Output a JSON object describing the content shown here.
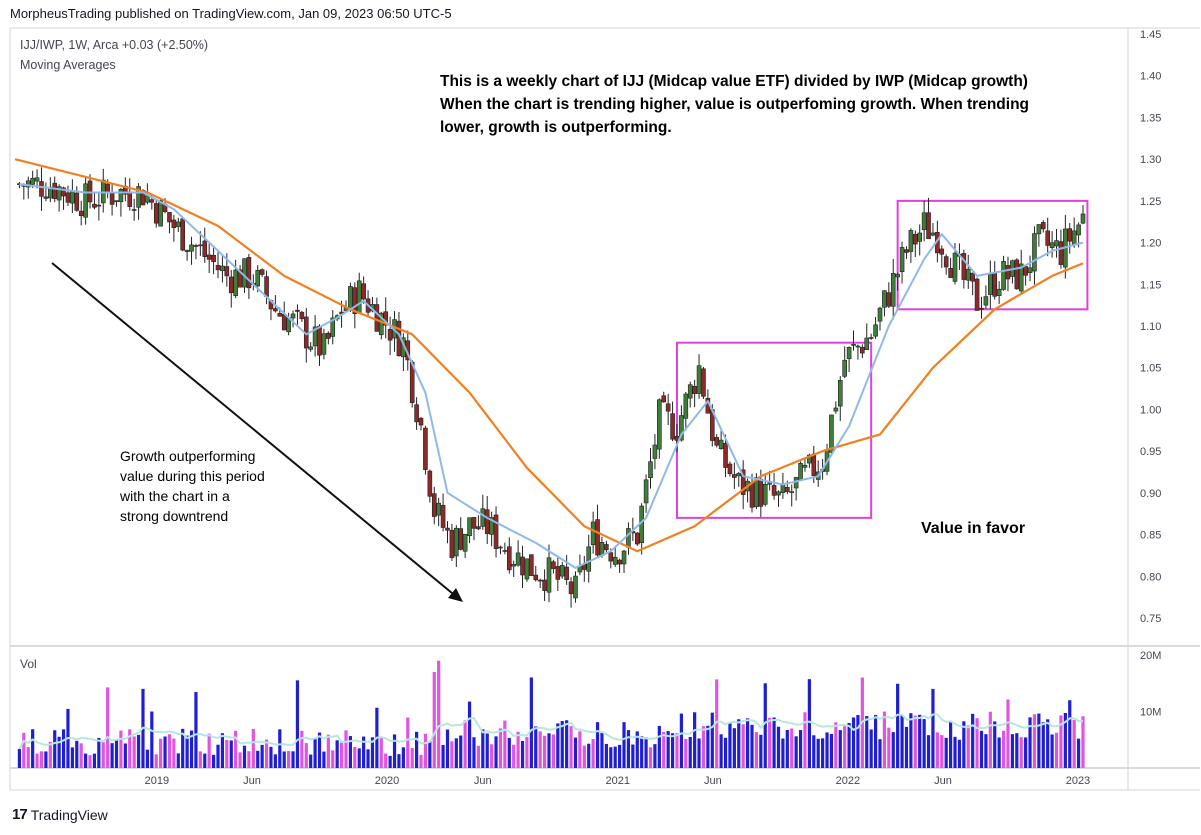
{
  "header": {
    "publisher": "MorpheusTrading published on TradingView.com, Jan 09, 2023 06:50 UTC-5",
    "ticker_line": "IJJ/IWP, 1W, Arca  +0.03 (+2.50%)",
    "indicator": "Moving Averages",
    "volume_label": "Vol"
  },
  "annotations": {
    "main_note": [
      "This is a weekly chart of IJJ (Midcap value ETF) divided by IWP (Midcap growth)",
      "When the chart is trending higher, value is outperfoming growth.  When trending",
      "lower, growth is outperforming."
    ],
    "left_note": [
      "Growth outperforming",
      "value during this period",
      "with the chart in a",
      "strong downtrend"
    ],
    "favor_note": "Value in favor"
  },
  "footer": {
    "logo": "17",
    "brand": "TradingView"
  },
  "colors": {
    "up": "#3f7d3a",
    "down": "#8c2a2a",
    "ma_fast": "#8fb9e8",
    "ma_slow": "#f08020",
    "box": "#e040e0",
    "vol_blue": "#1f1fd0",
    "vol_pink": "#e055e0",
    "vol_ma": "#b8e6e0"
  },
  "chart_data": {
    "type": "candlestick",
    "title": "IJJ/IWP, 1W, Arca",
    "ylim": [
      0.72,
      1.48
    ],
    "y_ticks": [
      "1.45",
      "1.40",
      "1.35",
      "1.30",
      "1.25",
      "1.20",
      "1.15",
      "1.10",
      "1.05",
      "1.00",
      "0.95",
      "0.90",
      "0.85",
      "0.80",
      "0.75"
    ],
    "x_ticks": [
      {
        "label": "2019",
        "date": "2019-01-01"
      },
      {
        "label": "Jun",
        "date": "2019-06-01"
      },
      {
        "label": "2020",
        "date": "2020-01-01"
      },
      {
        "label": "Jun",
        "date": "2020-06-01"
      },
      {
        "label": "2021",
        "date": "2021-01-01"
      },
      {
        "label": "Jun",
        "date": "2021-06-01"
      },
      {
        "label": "2022",
        "date": "2022-01-01"
      },
      {
        "label": "Jun",
        "date": "2022-06-01"
      },
      {
        "label": "2023",
        "date": "2023-01-01"
      }
    ],
    "x_range": [
      "2018-05-21",
      "2023-01-09"
    ],
    "close_path": [
      {
        "date": "2018-05-28",
        "value": 1.27
      },
      {
        "date": "2018-07-16",
        "value": 1.27
      },
      {
        "date": "2018-09-10",
        "value": 1.25
      },
      {
        "date": "2018-10-29",
        "value": 1.26
      },
      {
        "date": "2018-12-10",
        "value": 1.26
      },
      {
        "date": "2019-01-28",
        "value": 1.22
      },
      {
        "date": "2019-03-11",
        "value": 1.19
      },
      {
        "date": "2019-04-22",
        "value": 1.16
      },
      {
        "date": "2019-06-03",
        "value": 1.16
      },
      {
        "date": "2019-07-08",
        "value": 1.12
      },
      {
        "date": "2019-08-12",
        "value": 1.1
      },
      {
        "date": "2019-09-23",
        "value": 1.07
      },
      {
        "date": "2019-10-21",
        "value": 1.12
      },
      {
        "date": "2019-11-18",
        "value": 1.14
      },
      {
        "date": "2019-12-23",
        "value": 1.11
      },
      {
        "date": "2020-01-27",
        "value": 1.08
      },
      {
        "date": "2020-02-24",
        "value": 0.98
      },
      {
        "date": "2020-03-16",
        "value": 0.88
      },
      {
        "date": "2020-04-13",
        "value": 0.84
      },
      {
        "date": "2020-05-11",
        "value": 0.86
      },
      {
        "date": "2020-06-08",
        "value": 0.86
      },
      {
        "date": "2020-07-13",
        "value": 0.83
      },
      {
        "date": "2020-08-17",
        "value": 0.81
      },
      {
        "date": "2020-09-21",
        "value": 0.8
      },
      {
        "date": "2020-10-26",
        "value": 0.78
      },
      {
        "date": "2020-11-23",
        "value": 0.85
      },
      {
        "date": "2020-12-28",
        "value": 0.83
      },
      {
        "date": "2021-02-01",
        "value": 0.85
      },
      {
        "date": "2021-03-08",
        "value": 0.99
      },
      {
        "date": "2021-04-05",
        "value": 0.98
      },
      {
        "date": "2021-05-10",
        "value": 1.05
      },
      {
        "date": "2021-06-07",
        "value": 0.95
      },
      {
        "date": "2021-07-12",
        "value": 0.91
      },
      {
        "date": "2021-08-16",
        "value": 0.9
      },
      {
        "date": "2021-09-20",
        "value": 0.89
      },
      {
        "date": "2021-10-25",
        "value": 0.92
      },
      {
        "date": "2021-11-22",
        "value": 0.94
      },
      {
        "date": "2021-12-27",
        "value": 1.06
      },
      {
        "date": "2022-02-07",
        "value": 1.09
      },
      {
        "date": "2022-03-07",
        "value": 1.14
      },
      {
        "date": "2022-04-04",
        "value": 1.19
      },
      {
        "date": "2022-05-02",
        "value": 1.22
      },
      {
        "date": "2022-05-23",
        "value": 1.21
      },
      {
        "date": "2022-06-20",
        "value": 1.17
      },
      {
        "date": "2022-07-25",
        "value": 1.13
      },
      {
        "date": "2022-08-29",
        "value": 1.16
      },
      {
        "date": "2022-10-03",
        "value": 1.16
      },
      {
        "date": "2022-10-31",
        "value": 1.2
      },
      {
        "date": "2022-12-05",
        "value": 1.19
      },
      {
        "date": "2023-01-09",
        "value": 1.23
      }
    ],
    "ma_fast_points": [
      {
        "date": "2018-05-28",
        "value": 1.27
      },
      {
        "date": "2018-09-10",
        "value": 1.26
      },
      {
        "date": "2018-12-10",
        "value": 1.26
      },
      {
        "date": "2019-01-28",
        "value": 1.24
      },
      {
        "date": "2019-04-08",
        "value": 1.19
      },
      {
        "date": "2019-06-17",
        "value": 1.14
      },
      {
        "date": "2019-08-26",
        "value": 1.09
      },
      {
        "date": "2019-10-14",
        "value": 1.11
      },
      {
        "date": "2019-11-25",
        "value": 1.13
      },
      {
        "date": "2020-01-20",
        "value": 1.09
      },
      {
        "date": "2020-03-02",
        "value": 1.02
      },
      {
        "date": "2020-04-06",
        "value": 0.9
      },
      {
        "date": "2020-06-08",
        "value": 0.87
      },
      {
        "date": "2020-08-24",
        "value": 0.84
      },
      {
        "date": "2020-10-26",
        "value": 0.81
      },
      {
        "date": "2020-12-21",
        "value": 0.83
      },
      {
        "date": "2021-02-15",
        "value": 0.87
      },
      {
        "date": "2021-04-12",
        "value": 0.97
      },
      {
        "date": "2021-05-24",
        "value": 1.01
      },
      {
        "date": "2021-07-19",
        "value": 0.92
      },
      {
        "date": "2021-09-20",
        "value": 0.91
      },
      {
        "date": "2021-11-15",
        "value": 0.92
      },
      {
        "date": "2022-01-03",
        "value": 0.98
      },
      {
        "date": "2022-03-07",
        "value": 1.1
      },
      {
        "date": "2022-05-02",
        "value": 1.18
      },
      {
        "date": "2022-05-30",
        "value": 1.21
      },
      {
        "date": "2022-07-25",
        "value": 1.16
      },
      {
        "date": "2022-10-03",
        "value": 1.17
      },
      {
        "date": "2022-11-21",
        "value": 1.19
      },
      {
        "date": "2023-01-09",
        "value": 1.2
      }
    ],
    "ma_slow_points": [
      {
        "date": "2018-05-21",
        "value": 1.3
      },
      {
        "date": "2018-09-03",
        "value": 1.28
      },
      {
        "date": "2018-12-17",
        "value": 1.26
      },
      {
        "date": "2019-04-08",
        "value": 1.22
      },
      {
        "date": "2019-07-22",
        "value": 1.16
      },
      {
        "date": "2019-11-04",
        "value": 1.12
      },
      {
        "date": "2020-02-10",
        "value": 1.09
      },
      {
        "date": "2020-05-11",
        "value": 1.02
      },
      {
        "date": "2020-08-10",
        "value": 0.93
      },
      {
        "date": "2020-11-09",
        "value": 0.86
      },
      {
        "date": "2021-02-01",
        "value": 0.83
      },
      {
        "date": "2021-05-03",
        "value": 0.86
      },
      {
        "date": "2021-08-16",
        "value": 0.92
      },
      {
        "date": "2021-11-22",
        "value": 0.95
      },
      {
        "date": "2022-02-21",
        "value": 0.97
      },
      {
        "date": "2022-05-16",
        "value": 1.05
      },
      {
        "date": "2022-08-22",
        "value": 1.12
      },
      {
        "date": "2022-11-21",
        "value": 1.16
      },
      {
        "date": "2023-01-09",
        "value": 1.175
      }
    ],
    "boxes": [
      {
        "date_start": "2021-04-05",
        "date_end": "2022-02-07",
        "y_low": 0.87,
        "y_high": 1.08
      },
      {
        "date_start": "2022-03-21",
        "date_end": "2023-01-16",
        "y_low": 1.12,
        "y_high": 1.25
      }
    ],
    "volume": {
      "ylim": [
        0,
        20
      ],
      "y_ticks": [
        "20M",
        "10M"
      ],
      "peaks": [
        {
          "date": "2018-12-10",
          "value": 14
        },
        {
          "date": "2018-12-24",
          "value": 10
        },
        {
          "date": "2020-03-16",
          "value": 17
        },
        {
          "date": "2020-03-23",
          "value": 19
        },
        {
          "date": "2021-08-23",
          "value": 15
        },
        {
          "date": "2022-01-24",
          "value": 16
        },
        {
          "date": "2022-05-16",
          "value": 14
        },
        {
          "date": "2022-12-19",
          "value": 12
        }
      ]
    }
  }
}
